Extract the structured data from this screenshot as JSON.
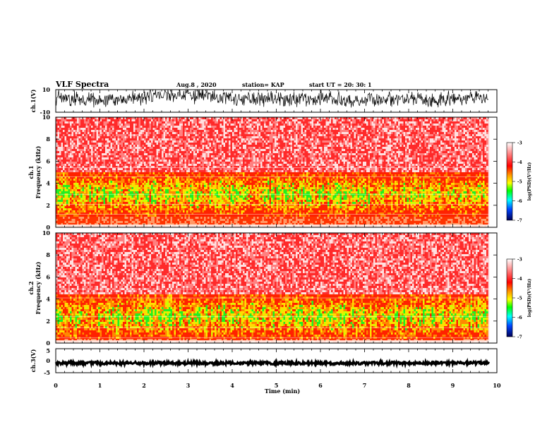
{
  "header": {
    "title": "VLF Spectra",
    "date": "Aug.8  , 2020",
    "station": "station= KAP",
    "start": "start  UT  =   20: 30: 1"
  },
  "chart_data": [
    {
      "id": "ch1-waveform",
      "type": "line",
      "ylabel": "ch.1(V)",
      "ylim": [
        -10,
        10
      ],
      "ytick_labels": [
        "10",
        "-10"
      ],
      "x_range_min": [
        0,
        9.83
      ],
      "description_values": "noisy waveform spanning approximately -6 to +10 V"
    },
    {
      "id": "ch1-spectrogram",
      "type": "heatmap",
      "ylabel_top": "ch.1",
      "ylabel": "Frequency  (kHz)",
      "ylim": [
        0,
        10
      ],
      "ytick_labels": [
        "0",
        "2",
        "4",
        "6",
        "8",
        "10"
      ],
      "band_khz": [
        1.0,
        5.0
      ],
      "colorbar": {
        "label": "log(PSD)(V²/Hz)",
        "range": [
          -7,
          -3
        ],
        "ticks": [
          "-3",
          "-4",
          "-5",
          "-6",
          "-7"
        ]
      }
    },
    {
      "id": "ch2-spectrogram",
      "type": "heatmap",
      "ylabel_top": "ch.2",
      "ylabel": "Frequency  (kHz)",
      "ylim": [
        0,
        10
      ],
      "ytick_labels": [
        "0",
        "2",
        "4",
        "6",
        "8",
        "10"
      ],
      "band_khz": [
        0.3,
        4.5
      ],
      "colorbar": {
        "label": "log(PSD)(V²/Hz)",
        "range": [
          -7,
          -3
        ],
        "ticks": [
          "-3",
          "-4",
          "-5",
          "-6",
          "-7"
        ]
      }
    },
    {
      "id": "ch3-waveform",
      "type": "line",
      "ylabel": "ch.3(V)",
      "ylim": [
        -5,
        5
      ],
      "ytick_labels": [
        "5",
        "0",
        "-5"
      ],
      "level_v": -1,
      "x_range_min": [
        0,
        9.83
      ]
    }
  ],
  "xaxis": {
    "label": "Time  (min)",
    "range": [
      0,
      10
    ],
    "tick_labels": [
      "0",
      "1",
      "2",
      "3",
      "4",
      "5",
      "6",
      "7",
      "8",
      "9",
      "10"
    ]
  },
  "colors": {
    "waveform": "#000000",
    "scale": [
      "#ffffff",
      "#ff0000",
      "#ff9900",
      "#ffff00",
      "#00ff00",
      "#00ffff",
      "#0066ff",
      "#000066"
    ]
  }
}
